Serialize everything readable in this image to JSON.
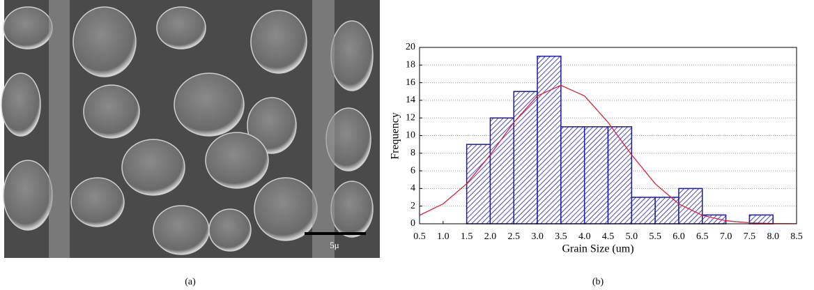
{
  "figure": {
    "panel_a_label": "(a)",
    "panel_b_label": "(b)",
    "scale_bar_label": "5μ"
  },
  "chart_data": {
    "type": "histogram",
    "x_label": "Grain Size (um)",
    "y_label": "Frequency",
    "bins": [
      0.5,
      1.0,
      1.5,
      2.0,
      2.5,
      3.0,
      3.5,
      4.0,
      4.5,
      5.0,
      5.5,
      6.0,
      6.5,
      7.0,
      7.5,
      8.0,
      8.5
    ],
    "values": [
      0,
      0,
      9,
      12,
      15,
      19,
      11,
      11,
      11,
      3,
      3,
      4,
      1,
      0,
      1,
      0
    ],
    "color": "#1a1aa8",
    "curve": {
      "color": "#e0203a",
      "x": [
        0.5,
        1.0,
        1.5,
        2.0,
        2.5,
        3.0,
        3.5,
        4.0,
        4.5,
        5.0,
        5.5,
        6.0,
        6.5,
        7.0,
        7.5,
        8.0,
        8.5
      ],
      "values": [
        0.96,
        2.26,
        4.54,
        7.82,
        11.5,
        14.5,
        15.7,
        14.5,
        11.5,
        7.82,
        4.54,
        2.26,
        0.96,
        0.35,
        0.11,
        0.03,
        0.01
      ]
    },
    "xlim": [
      0.5,
      8.5
    ],
    "xticks": [
      0.5,
      {
        "value": 1,
        "label": "1.0"
      },
      1.5,
      {
        "value": 2,
        "label": "2.0"
      },
      2.5,
      {
        "value": 3,
        "label": "3.0"
      },
      3.5,
      {
        "value": 4,
        "label": "4.0"
      },
      4.5,
      {
        "value": 5,
        "label": "5.0"
      },
      5.5,
      {
        "value": 6,
        "label": "6.0"
      },
      6.5,
      {
        "value": 7,
        "label": "7.0"
      },
      7.5,
      {
        "value": 8,
        "label": "8.0"
      },
      8.5
    ],
    "ylim": [
      0,
      20
    ],
    "yticks": [
      0,
      2,
      4,
      6,
      8,
      10,
      12,
      14,
      16,
      18,
      20
    ],
    "grid": true
  }
}
